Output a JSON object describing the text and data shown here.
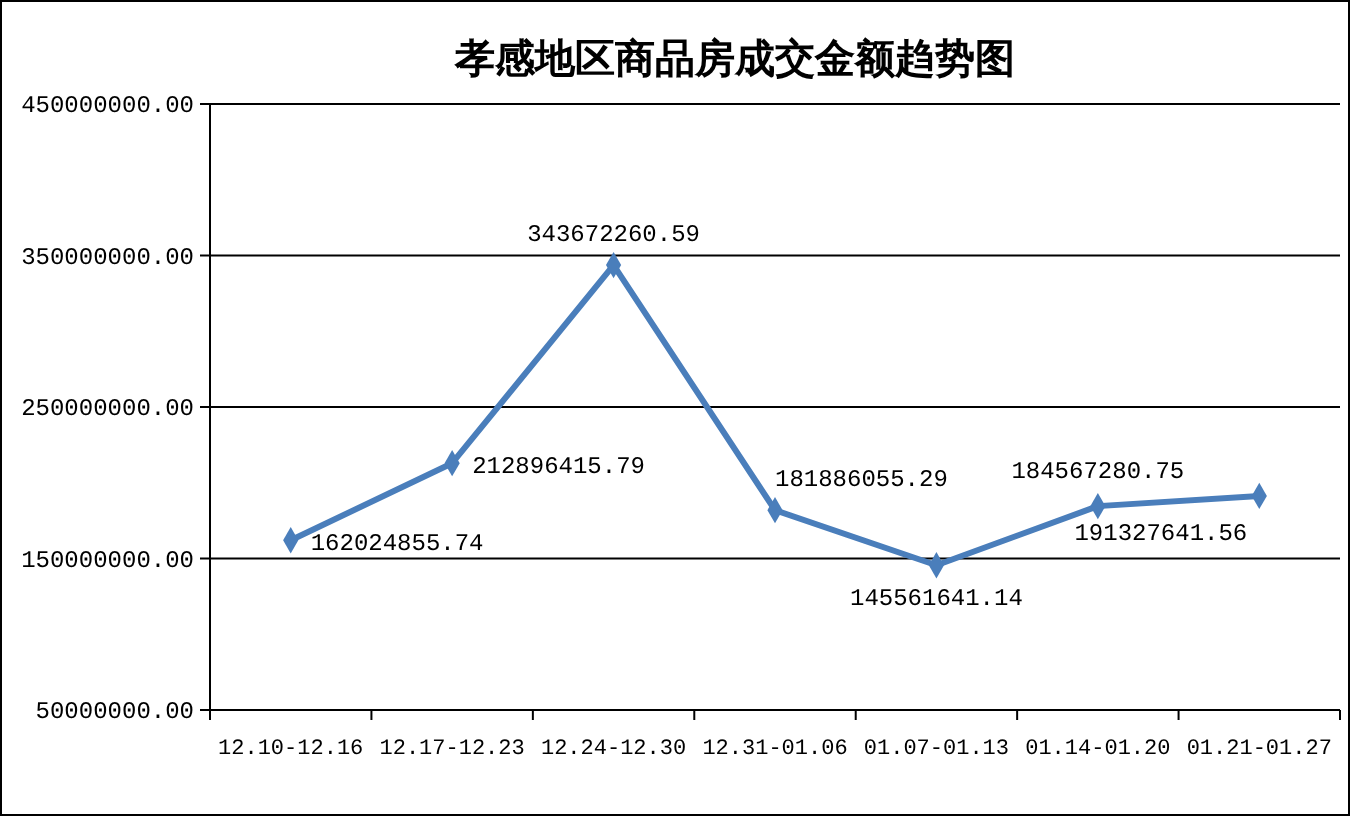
{
  "chart_data": {
    "type": "line",
    "title": "孝感地区商品房成交金额趋势图",
    "categories": [
      "12.10-12.16",
      "12.17-12.23",
      "12.24-12.30",
      "12.31-01.06",
      "01.07-01.13",
      "01.14-01.20",
      "01.21-01.27"
    ],
    "series": [
      {
        "color": "#4a7ebb",
        "values": [
          162024855.74,
          212896415.79,
          343672260.59,
          181886055.29,
          145561641.14,
          184567280.75,
          191327641.56
        ]
      }
    ],
    "ylim": [
      50000000,
      450000000
    ],
    "yticks": [
      {
        "value": 50000000,
        "label": "50000000.00"
      },
      {
        "value": 150000000,
        "label": "150000000.00"
      },
      {
        "value": 250000000,
        "label": "250000000.00"
      },
      {
        "value": 350000000,
        "label": "350000000.00"
      },
      {
        "value": 450000000,
        "label": "450000000.00"
      }
    ],
    "grid": "y",
    "marker": "diamond",
    "line_style": "solid",
    "data_labels": true
  }
}
